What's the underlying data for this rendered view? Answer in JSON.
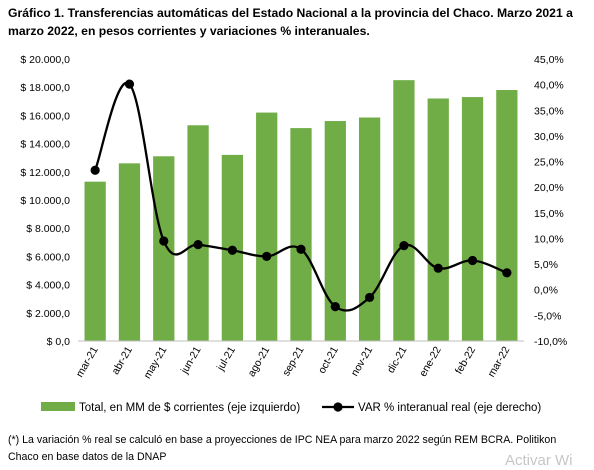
{
  "title": "Gráfico 1. Transferencias automáticas del Estado Nacional a la provincia del Chaco. Marzo 2021 a marzo 2022, en pesos corrientes y variaciones % interanuales.",
  "chart_data": {
    "type": "bar",
    "categories": [
      "mar-21",
      "abr-21",
      "may-21",
      "jun-21",
      "jul-21",
      "ago-21",
      "sep-21",
      "oct-21",
      "nov-21",
      "dic-21",
      "ene-22",
      "feb-22",
      "mar-22"
    ],
    "series": [
      {
        "name": "Total, en MM de $ corrientes (eje izquierdo)",
        "type": "bar",
        "axis": "left",
        "color": "#70ad47",
        "values": [
          11300,
          12600,
          13100,
          15300,
          13200,
          16200,
          15100,
          15600,
          15850,
          18500,
          17200,
          17300,
          17800
        ]
      },
      {
        "name": "VAR % interanual real (eje derecho)",
        "type": "line",
        "axis": "right",
        "color": "#000000",
        "values": [
          23.3,
          40.1,
          9.5,
          8.8,
          7.7,
          6.5,
          7.9,
          -3.3,
          -1.5,
          8.6,
          4.2,
          5.7,
          3.3
        ]
      }
    ],
    "y_left": {
      "ylim": [
        0,
        20000
      ],
      "ticks": [
        "$ 0,0",
        "$ 2.000,0",
        "$ 4.000,0",
        "$ 6.000,0",
        "$ 8.000,0",
        "$ 10.000,0",
        "$ 12.000,0",
        "$ 14.000,0",
        "$ 16.000,0",
        "$ 18.000,0",
        "$ 20.000,0"
      ]
    },
    "y_right": {
      "ylim": [
        -10,
        45
      ],
      "ticks": [
        "-10,0%",
        "-5,0%",
        "0,0%",
        "5,0%",
        "10,0%",
        "15,0%",
        "20,0%",
        "25,0%",
        "30,0%",
        "35,0%",
        "40,0%",
        "45,0%"
      ]
    },
    "grid": false,
    "legend": "bottom"
  },
  "footnote": "(*) La variación % real se calculó en base a proyecciones de IPC NEA para marzo 2022 según REM BCRA. Politikon Chaco en base datos de la DNAP",
  "watermark": "Activar Wi"
}
